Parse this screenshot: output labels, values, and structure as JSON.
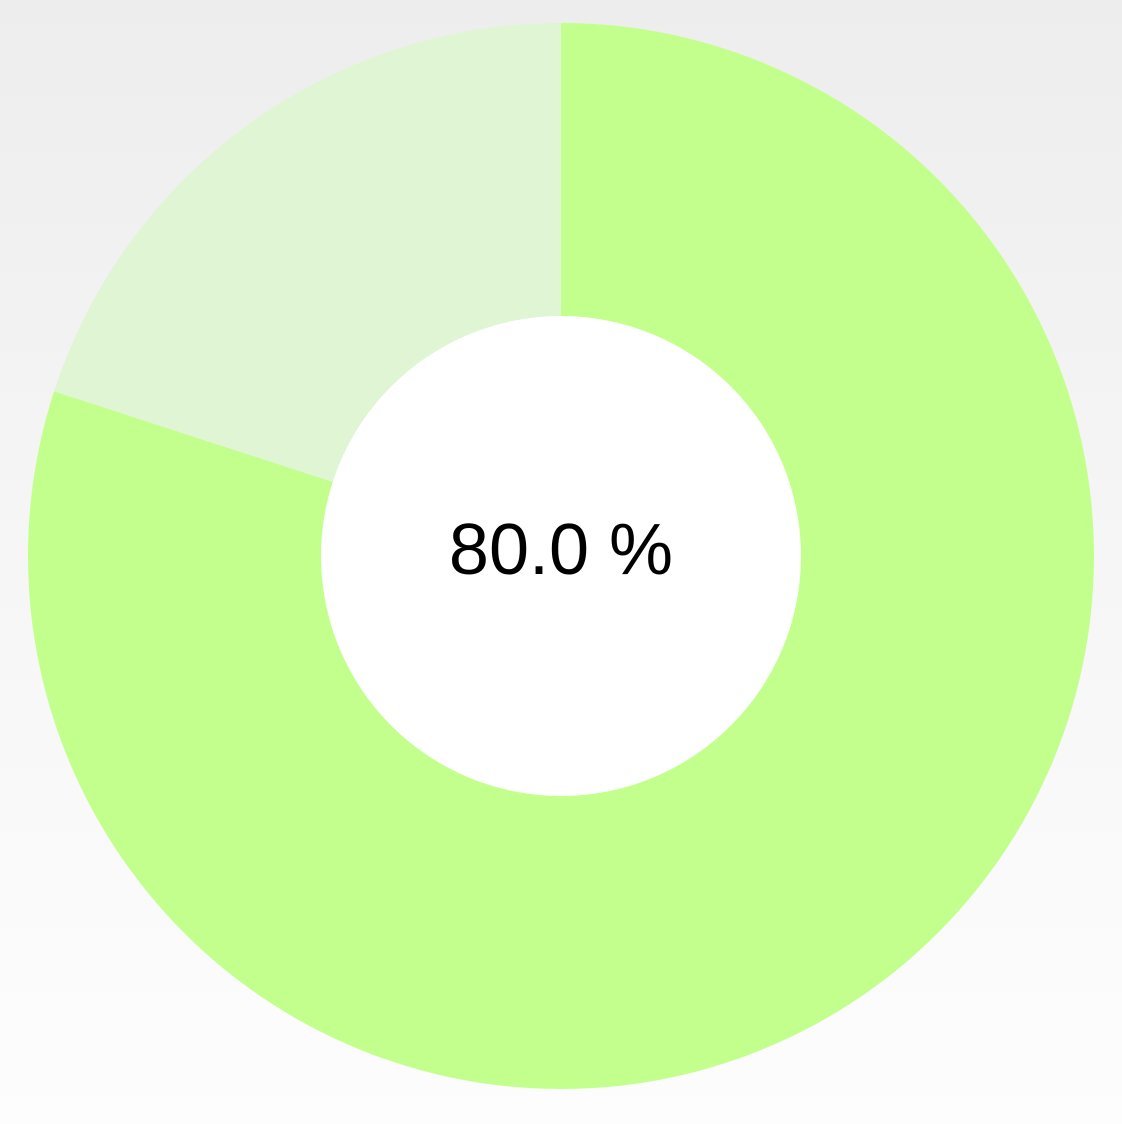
{
  "chart_data": {
    "type": "pie",
    "variant": "donut",
    "center_label": "80.0 %",
    "slices": [
      {
        "value": 80.0,
        "color": "#c3ff8c"
      },
      {
        "value": 20.0,
        "color": "#e0f5d3"
      }
    ],
    "hole_color": "#ffffff",
    "start_direction": "top",
    "direction": "clockwise"
  }
}
